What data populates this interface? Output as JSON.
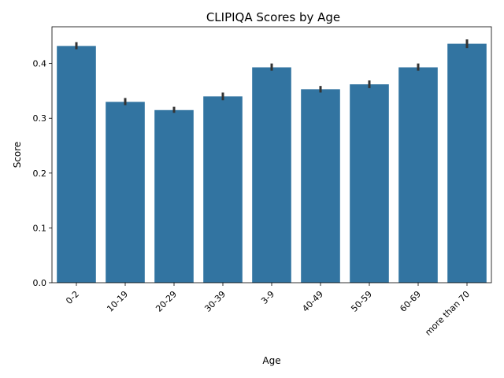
{
  "chart_data": {
    "type": "bar",
    "title": "CLIPIQA Scores by Age",
    "xlabel": "Age",
    "ylabel": "Score",
    "categories": [
      "0-2",
      "10-19",
      "20-29",
      "30-39",
      "3-9",
      "40-49",
      "50-59",
      "60-69",
      "more than 70"
    ],
    "values": [
      0.432,
      0.33,
      0.315,
      0.34,
      0.393,
      0.353,
      0.362,
      0.393,
      0.436
    ],
    "error_low": [
      0.426,
      0.324,
      0.31,
      0.333,
      0.387,
      0.347,
      0.355,
      0.387,
      0.428
    ],
    "error_high": [
      0.439,
      0.337,
      0.321,
      0.347,
      0.4,
      0.359,
      0.369,
      0.4,
      0.444
    ],
    "ylim": [
      0,
      0.467
    ],
    "yticks": [
      0.0,
      0.1,
      0.2,
      0.3,
      0.4
    ],
    "ytick_labels": [
      "0.0",
      "0.1",
      "0.2",
      "0.3",
      "0.4"
    ],
    "grid": false,
    "legend": "none",
    "bar_color": "#3274a1",
    "error_color": "#333333"
  }
}
